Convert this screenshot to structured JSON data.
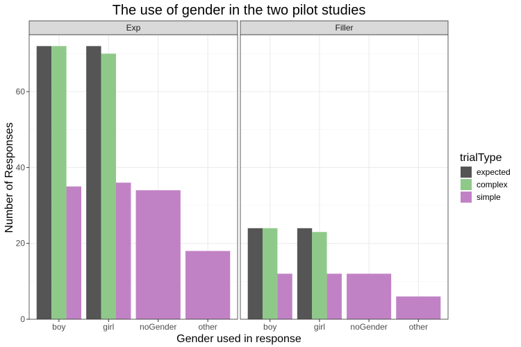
{
  "chart_data": {
    "type": "bar",
    "title": "The use of gender in the two pilot studies",
    "xlabel": "Gender used in response",
    "ylabel": "Number of Responses",
    "ylim": [
      0,
      75
    ],
    "yticks": [
      0,
      20,
      40,
      60
    ],
    "grid": true,
    "legend": {
      "title": "trialType",
      "placement": "right",
      "entries": [
        {
          "name": "expected",
          "color": "#555555"
        },
        {
          "name": "complex",
          "color": "#8fc98a"
        },
        {
          "name": "simple",
          "color": "#c182c5"
        }
      ]
    },
    "categories": [
      "boy",
      "girl",
      "noGender",
      "other"
    ],
    "panels": [
      {
        "name": "Exp",
        "series": [
          {
            "name": "expected",
            "values": [
              72,
              72,
              null,
              null
            ]
          },
          {
            "name": "complex",
            "values": [
              72,
              70,
              null,
              null
            ]
          },
          {
            "name": "simple",
            "values": [
              35,
              36,
              34,
              18
            ]
          }
        ]
      },
      {
        "name": "Filler",
        "series": [
          {
            "name": "expected",
            "values": [
              24,
              24,
              null,
              null
            ]
          },
          {
            "name": "complex",
            "values": [
              24,
              23,
              null,
              null
            ]
          },
          {
            "name": "simple",
            "values": [
              12,
              12,
              12,
              6
            ]
          }
        ]
      }
    ]
  }
}
